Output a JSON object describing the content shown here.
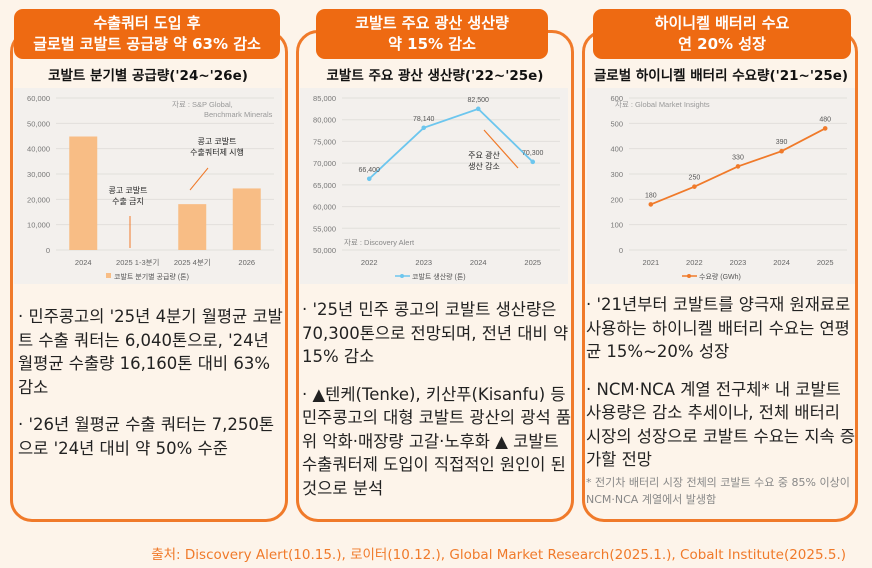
{
  "panels": [
    {
      "title_line1": "수출쿼터 도입 후",
      "title_line2": "글로벌 코발트 공급량 약 63% 감소",
      "subtitle": "코발트 분기별 공급량('24~'26e)",
      "bullets": [
        "· 민주콩고의 '25년 4분기 월평균 코발트 수출 쿼터는 6,040톤으로, '24년 월평균 수출량 16,160톤 대비 63% 감소",
        "· '26년 월평균 수출 쿼터는 7,250톤으로 '24년 대비 약 50% 수준"
      ]
    },
    {
      "title_line1": "코발트 주요 광산 생산량",
      "title_line2": "약 15% 감소",
      "subtitle": "코발트 주요 광산 생산량('22~'25e)",
      "bullets": [
        "· '25년 민주 콩고의 코발트 생산량은 70,300톤으로 전망되며, 전년 대비 약 15% 감소",
        "· ▲텐케(Tenke), 키산푸(Kisanfu) 등 민주콩고의 대형 코발트 광산의 광석 품위 악화·매장량 고갈·노후화 ▲ 코발트 수출쿼터제 도입이 직접적인 원인이 된 것으로 분석"
      ]
    },
    {
      "title_line1": "하이니켈 배터리 수요",
      "title_line2": "연 20% 성장",
      "subtitle": "글로벌 하이니켈 배터리 수요량('21~'25e)",
      "bullets": [
        "· '21년부터 코발트를 양극재 원재료로 사용하는 하이니켈 배터리 수요는 연평균 15%~20% 성장",
        "· NCM·NCA 계열 전구체* 내 코발트 사용량은 감소 추세이나, 전체 배터리 시장의 성장으로 코발트 수요는 지속 증가할 전망"
      ],
      "note": "* 전기차 배터리 시장 전체의 코발트 수요 중 85% 이상이 NCM·NCA 계열에서 발생함"
    }
  ],
  "source": "출처: Discovery Alert(10.15.), 로이터(10.12.), Global Market Research(2025.1.), Cobalt Institute(2025.5.)",
  "colors": {
    "accent": "#ee6a12",
    "bar": "#f8bd85",
    "line2": "#6cc6ee",
    "line3": "#f07a2a"
  },
  "chart_data": [
    {
      "type": "bar",
      "categories": [
        "2024",
        "2025 1-3분기",
        "2025 4분기",
        "2026"
      ],
      "values": [
        44800,
        0,
        18100,
        24300
      ],
      "ylim": [
        0,
        60000
      ],
      "yticks": [
        "0",
        "10,000",
        "20,000",
        "30,000",
        "40,000",
        "50,000",
        "60,000"
      ],
      "legend": "코발트 분기별 공급량 (톤)",
      "source_note": [
        "자료 : S&P Global,",
        "Benchmark Minerals"
      ],
      "annotations": [
        "콩고 코발트",
        "수출 금지",
        "콩고 코발트",
        "수출쿼터제 시행"
      ]
    },
    {
      "type": "line",
      "categories": [
        "2022",
        "2023",
        "2024",
        "2025"
      ],
      "values": [
        66400,
        78140,
        82500,
        70300
      ],
      "labels": [
        "66,400",
        "78,140",
        "82,500",
        "70,300"
      ],
      "ylim": [
        50000,
        85000
      ],
      "yticks": [
        "50,000",
        "55,000",
        "60,000",
        "65,000",
        "70,000",
        "75,000",
        "80,000",
        "85,000"
      ],
      "legend": "코발트 생산량 (톤)",
      "source_note": "자료 : Discovery Alert",
      "annotations": [
        "주요 광산",
        "생산 감소"
      ]
    },
    {
      "type": "line",
      "categories": [
        "2021",
        "2022",
        "2023",
        "2024",
        "2025"
      ],
      "values": [
        180,
        250,
        330,
        390,
        480
      ],
      "labels": [
        "180",
        "250",
        "330",
        "390",
        "480"
      ],
      "ylim": [
        0,
        600
      ],
      "yticks": [
        "0",
        "100",
        "200",
        "300",
        "400",
        "500",
        "600"
      ],
      "legend": "수요량 (GWh)",
      "source_note": "자료 : Global Market Insights"
    }
  ]
}
